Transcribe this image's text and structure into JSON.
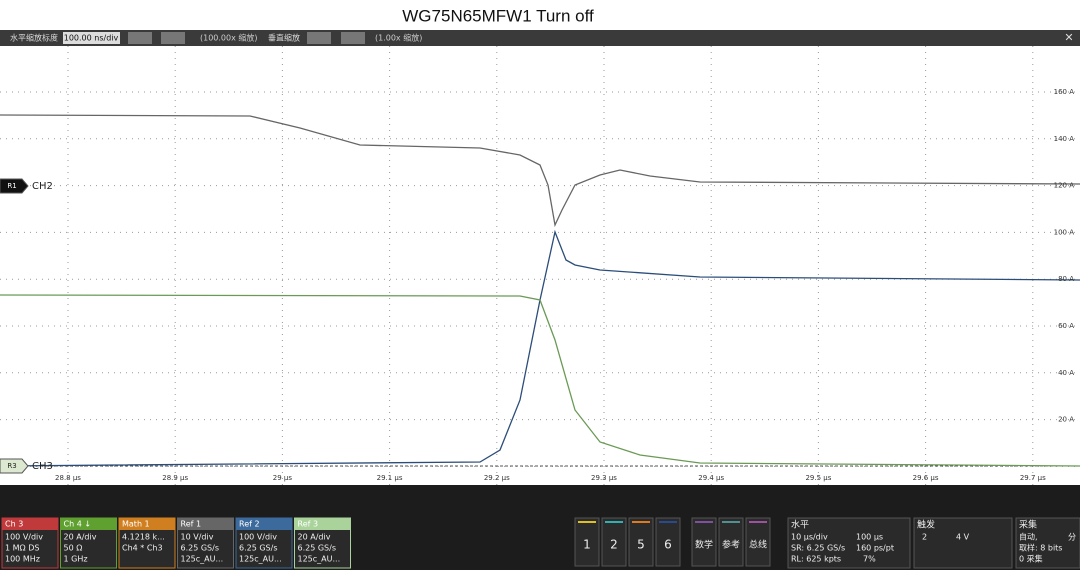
{
  "title": "WG75N65MFW1 Turn off",
  "toolbar": {
    "h_label": "水平缩放标度",
    "h_value": "100.00 ns/div",
    "h_zoom": "(100.00x 缩放)",
    "v_label": "垂直缩放",
    "v_zoom": "(1.00x 缩放)"
  },
  "markers": [
    {
      "tag": "R1",
      "name": "CH2"
    },
    {
      "tag": "R3",
      "name": "CH3"
    }
  ],
  "x_labels": [
    "28.8 μs",
    "28.9 μs",
    "29 μs",
    "29.1 μs",
    "29.2 μs",
    "29.3 μs",
    "29.4 μs",
    "29.5 μs",
    "29.6 μs",
    "29.7 μs"
  ],
  "y_labels": [
    "160 A",
    "140 A",
    "120 A",
    "100 A",
    "80 A",
    "60 A",
    "40 A",
    "20 A"
  ],
  "channels": [
    {
      "name": "Ch 3",
      "lines": [
        "100 V/div",
        "1 MΩ DS",
        "100 MHz"
      ]
    },
    {
      "name": "Ch 4 ↓",
      "lines": [
        "20 A/div",
        "50 Ω",
        "1 GHz"
      ]
    },
    {
      "name": "Math 1",
      "lines": [
        "4.1218 k...",
        "Ch4 * Ch3"
      ]
    },
    {
      "name": "Ref 1",
      "lines": [
        "10 V/div",
        "6.25 GS/s",
        "125c_AU..."
      ]
    },
    {
      "name": "Ref 2",
      "lines": [
        "100 V/div",
        "6.25 GS/s",
        "125c_AU..."
      ]
    },
    {
      "name": "Ref 3",
      "lines": [
        "20 A/div",
        "6.25 GS/s",
        "125c_AU..."
      ]
    }
  ],
  "buttons": [
    "1",
    "2",
    "5",
    "6",
    "数学",
    "参考",
    "总线"
  ],
  "horizontal": {
    "title": "水平",
    "lines": [
      "10 μs/div",
      "100 μs",
      "SR: 6.25 GS/s",
      "160 ps/pt",
      "RL: 625 kpts",
      "7%"
    ]
  },
  "trigger": {
    "title": "触发",
    "source": "2",
    "level": "4 V"
  },
  "acquisition": {
    "title": "采集",
    "lines": [
      "自动,",
      "分",
      "取样: 8 bits",
      "0 采集"
    ]
  }
}
